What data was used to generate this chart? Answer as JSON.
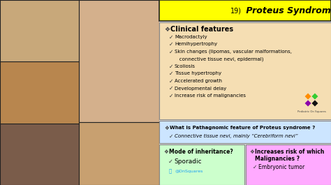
{
  "title_num": "19)",
  "title_text": " Proteus Syndrome",
  "title_bg": "#FFFF00",
  "title_border": "#444444",
  "clinical_bg": "#F5DEB3",
  "clinical_border": "#888888",
  "clinical_header": "Clinical features",
  "clinical_items": [
    "Macrodactyly",
    "Hemihypertrophy",
    "Skin changes (lipomas, vascular malformations,",
    "   connective tissue nevi, epidermal)",
    "Scoliosis",
    "Tissue hypertrophy",
    "Accelerated growth",
    "Developmental delay",
    "Increase risk of malignancies"
  ],
  "clinical_checks": [
    true,
    true,
    true,
    false,
    true,
    true,
    true,
    true,
    true
  ],
  "patho_bg": "#CCE5FF",
  "patho_border": "#888888",
  "patho_header": "What is Pathagnomic feature of Proteus syndrome ?",
  "patho_item": "Connective tissue nevi, mainly “Cerebriform nevi”",
  "inherit_bg": "#CCFFCC",
  "inherit_border": "#888888",
  "inherit_header": "Mode of inheritance?",
  "inherit_item": "Sporadic",
  "twitter": "@DnSquares",
  "twitter_color": "#1DA1F2",
  "malig_bg": "#FFAAFF",
  "malig_border": "#888888",
  "malig_header": "Increases risk of which\nMalignancies ?",
  "malig_item": "Embryonic tumor",
  "bg_color": "#555555",
  "photo_colors": [
    "#8B6355",
    "#C8A87A",
    "#D4B090"
  ],
  "photo2_color": "#C4956A",
  "diamond_orange": "#FF8C00",
  "diamond_purple": "#8B00AA",
  "diamond_green": "#32CD32",
  "diamond_black": "#111111",
  "text_dark": "#000000",
  "border_dark": "#222222"
}
